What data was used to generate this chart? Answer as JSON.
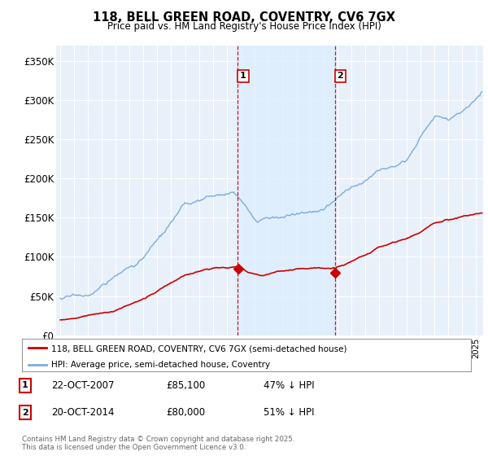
{
  "title": "118, BELL GREEN ROAD, COVENTRY, CV6 7GX",
  "subtitle": "Price paid vs. HM Land Registry's House Price Index (HPI)",
  "ylim": [
    0,
    370000
  ],
  "yticks": [
    0,
    50000,
    100000,
    150000,
    200000,
    250000,
    300000,
    350000
  ],
  "ytick_labels": [
    "£0",
    "£50K",
    "£100K",
    "£150K",
    "£200K",
    "£250K",
    "£300K",
    "£350K"
  ],
  "transaction1_year": 2007.81,
  "transaction1_price": 85100,
  "transaction2_year": 2014.81,
  "transaction2_price": 80000,
  "legend_house": "118, BELL GREEN ROAD, COVENTRY, CV6 7GX (semi-detached house)",
  "legend_hpi": "HPI: Average price, semi-detached house, Coventry",
  "footer": "Contains HM Land Registry data © Crown copyright and database right 2025.\nThis data is licensed under the Open Government Licence v3.0.",
  "house_color": "#cc0000",
  "hpi_color": "#7aaddc",
  "vline_color": "#cc0000",
  "shade_color": "#ddeeff",
  "background_color": "#e8f0fa",
  "grid_color": "#ffffff"
}
